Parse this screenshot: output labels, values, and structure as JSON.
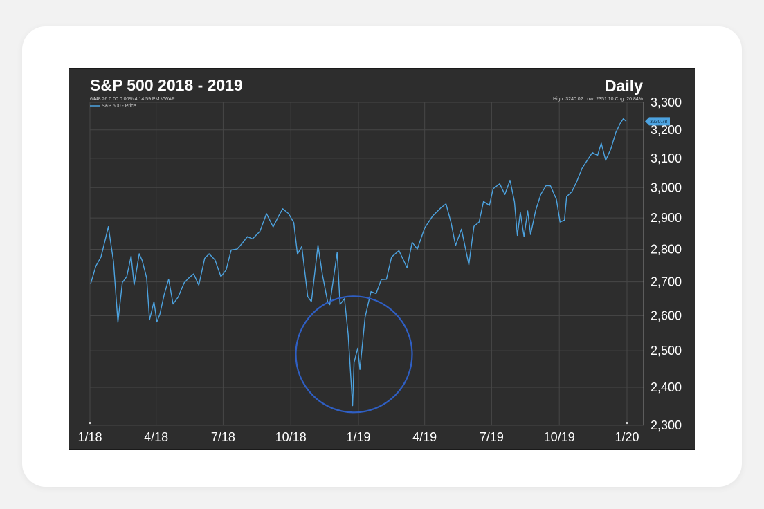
{
  "chart_data": {
    "type": "line",
    "title": "S&P 500 2018 - 2019",
    "period_label": "Daily",
    "info_left": "6448.26 0.00 0.00% 4:14:59 PM VWAP:",
    "info_right": "High: 3240.02 Low: 2351.10 Chg: 20.84%",
    "series": [
      {
        "name": "S&P 500 - Price",
        "color": "#4da3e0",
        "last_value_label": "3230.78",
        "points": [
          [
            "2018-01-02",
            2695
          ],
          [
            "2018-01-09",
            2748
          ],
          [
            "2018-01-16",
            2776
          ],
          [
            "2018-01-22",
            2832
          ],
          [
            "2018-01-26",
            2872
          ],
          [
            "2018-02-02",
            2762
          ],
          [
            "2018-02-08",
            2581
          ],
          [
            "2018-02-14",
            2698
          ],
          [
            "2018-02-20",
            2716
          ],
          [
            "2018-02-26",
            2779
          ],
          [
            "2018-03-02",
            2691
          ],
          [
            "2018-03-09",
            2786
          ],
          [
            "2018-03-13",
            2765
          ],
          [
            "2018-03-19",
            2712
          ],
          [
            "2018-03-23",
            2588
          ],
          [
            "2018-03-29",
            2641
          ],
          [
            "2018-04-02",
            2582
          ],
          [
            "2018-04-06",
            2604
          ],
          [
            "2018-04-12",
            2663
          ],
          [
            "2018-04-18",
            2708
          ],
          [
            "2018-04-24",
            2634
          ],
          [
            "2018-05-01",
            2655
          ],
          [
            "2018-05-09",
            2697
          ],
          [
            "2018-05-15",
            2711
          ],
          [
            "2018-05-22",
            2724
          ],
          [
            "2018-05-29",
            2690
          ],
          [
            "2018-06-06",
            2772
          ],
          [
            "2018-06-12",
            2786
          ],
          [
            "2018-06-20",
            2767
          ],
          [
            "2018-06-28",
            2716
          ],
          [
            "2018-07-05",
            2736
          ],
          [
            "2018-07-12",
            2798
          ],
          [
            "2018-07-20",
            2801
          ],
          [
            "2018-07-27",
            2819
          ],
          [
            "2018-08-03",
            2840
          ],
          [
            "2018-08-10",
            2833
          ],
          [
            "2018-08-20",
            2857
          ],
          [
            "2018-08-29",
            2914
          ],
          [
            "2018-09-07",
            2871
          ],
          [
            "2018-09-14",
            2904
          ],
          [
            "2018-09-20",
            2930
          ],
          [
            "2018-09-28",
            2914
          ],
          [
            "2018-10-05",
            2885
          ],
          [
            "2018-10-10",
            2785
          ],
          [
            "2018-10-16",
            2809
          ],
          [
            "2018-10-24",
            2656
          ],
          [
            "2018-10-29",
            2641
          ],
          [
            "2018-11-07",
            2813
          ],
          [
            "2018-11-13",
            2722
          ],
          [
            "2018-11-20",
            2641
          ],
          [
            "2018-11-23",
            2632
          ],
          [
            "2018-12-03",
            2790
          ],
          [
            "2018-12-07",
            2633
          ],
          [
            "2018-12-13",
            2650
          ],
          [
            "2018-12-18",
            2546
          ],
          [
            "2018-12-24",
            2351
          ],
          [
            "2018-12-26",
            2467
          ],
          [
            "2018-12-31",
            2507
          ],
          [
            "2019-01-03",
            2448
          ],
          [
            "2019-01-10",
            2596
          ],
          [
            "2019-01-18",
            2671
          ],
          [
            "2019-01-25",
            2665
          ],
          [
            "2019-02-01",
            2707
          ],
          [
            "2019-02-08",
            2708
          ],
          [
            "2019-02-15",
            2776
          ],
          [
            "2019-02-25",
            2796
          ],
          [
            "2019-03-08",
            2743
          ],
          [
            "2019-03-15",
            2822
          ],
          [
            "2019-03-22",
            2801
          ],
          [
            "2019-04-01",
            2868
          ],
          [
            "2019-04-12",
            2907
          ],
          [
            "2019-04-23",
            2933
          ],
          [
            "2019-04-30",
            2946
          ],
          [
            "2019-05-07",
            2884
          ],
          [
            "2019-05-13",
            2812
          ],
          [
            "2019-05-21",
            2864
          ],
          [
            "2019-05-31",
            2752
          ],
          [
            "2019-06-07",
            2873
          ],
          [
            "2019-06-14",
            2887
          ],
          [
            "2019-06-20",
            2954
          ],
          [
            "2019-06-28",
            2941
          ],
          [
            "2019-07-03",
            2996
          ],
          [
            "2019-07-12",
            3013
          ],
          [
            "2019-07-19",
            2977
          ],
          [
            "2019-07-26",
            3025
          ],
          [
            "2019-08-01",
            2953
          ],
          [
            "2019-08-05",
            2844
          ],
          [
            "2019-08-09",
            2918
          ],
          [
            "2019-08-14",
            2840
          ],
          [
            "2019-08-19",
            2923
          ],
          [
            "2019-08-23",
            2847
          ],
          [
            "2019-08-30",
            2926
          ],
          [
            "2019-09-06",
            2978
          ],
          [
            "2019-09-13",
            3007
          ],
          [
            "2019-09-19",
            3006
          ],
          [
            "2019-09-27",
            2961
          ],
          [
            "2019-10-02",
            2887
          ],
          [
            "2019-10-08",
            2893
          ],
          [
            "2019-10-11",
            2970
          ],
          [
            "2019-10-18",
            2986
          ],
          [
            "2019-10-25",
            3022
          ],
          [
            "2019-11-01",
            3066
          ],
          [
            "2019-11-08",
            3093
          ],
          [
            "2019-11-15",
            3120
          ],
          [
            "2019-11-22",
            3110
          ],
          [
            "2019-11-27",
            3153
          ],
          [
            "2019-12-03",
            3093
          ],
          [
            "2019-12-10",
            3132
          ],
          [
            "2019-12-17",
            3192
          ],
          [
            "2019-12-23",
            3224
          ],
          [
            "2019-12-27",
            3240
          ],
          [
            "2019-12-31",
            3230.78
          ]
        ]
      }
    ],
    "x_tick_labels": [
      "1/18",
      "4/18",
      "7/18",
      "10/18",
      "1/19",
      "4/19",
      "7/19",
      "10/19",
      "1/20"
    ],
    "x_ticks": [
      "2018-01-01",
      "2018-04-01",
      "2018-07-01",
      "2018-10-01",
      "2019-01-01",
      "2019-04-01",
      "2019-07-01",
      "2019-10-01",
      "2020-01-01"
    ],
    "y_tick_labels": [
      "2,300",
      "2,400",
      "2,500",
      "2,600",
      "2,700",
      "2,800",
      "2,900",
      "3,000",
      "3,100",
      "3,200",
      "3,300"
    ],
    "y_ticks": [
      2300,
      2400,
      2500,
      2600,
      2700,
      2800,
      2900,
      3000,
      3100,
      3200,
      3300
    ],
    "ylim": [
      2300,
      3300
    ],
    "xlim": [
      "2018-01-01",
      "2020-01-01"
    ],
    "y_scale": "log",
    "grid": true,
    "annotation": {
      "shape": "circle",
      "color": "#2f5fc4",
      "highlights": "2018-12 low"
    }
  }
}
